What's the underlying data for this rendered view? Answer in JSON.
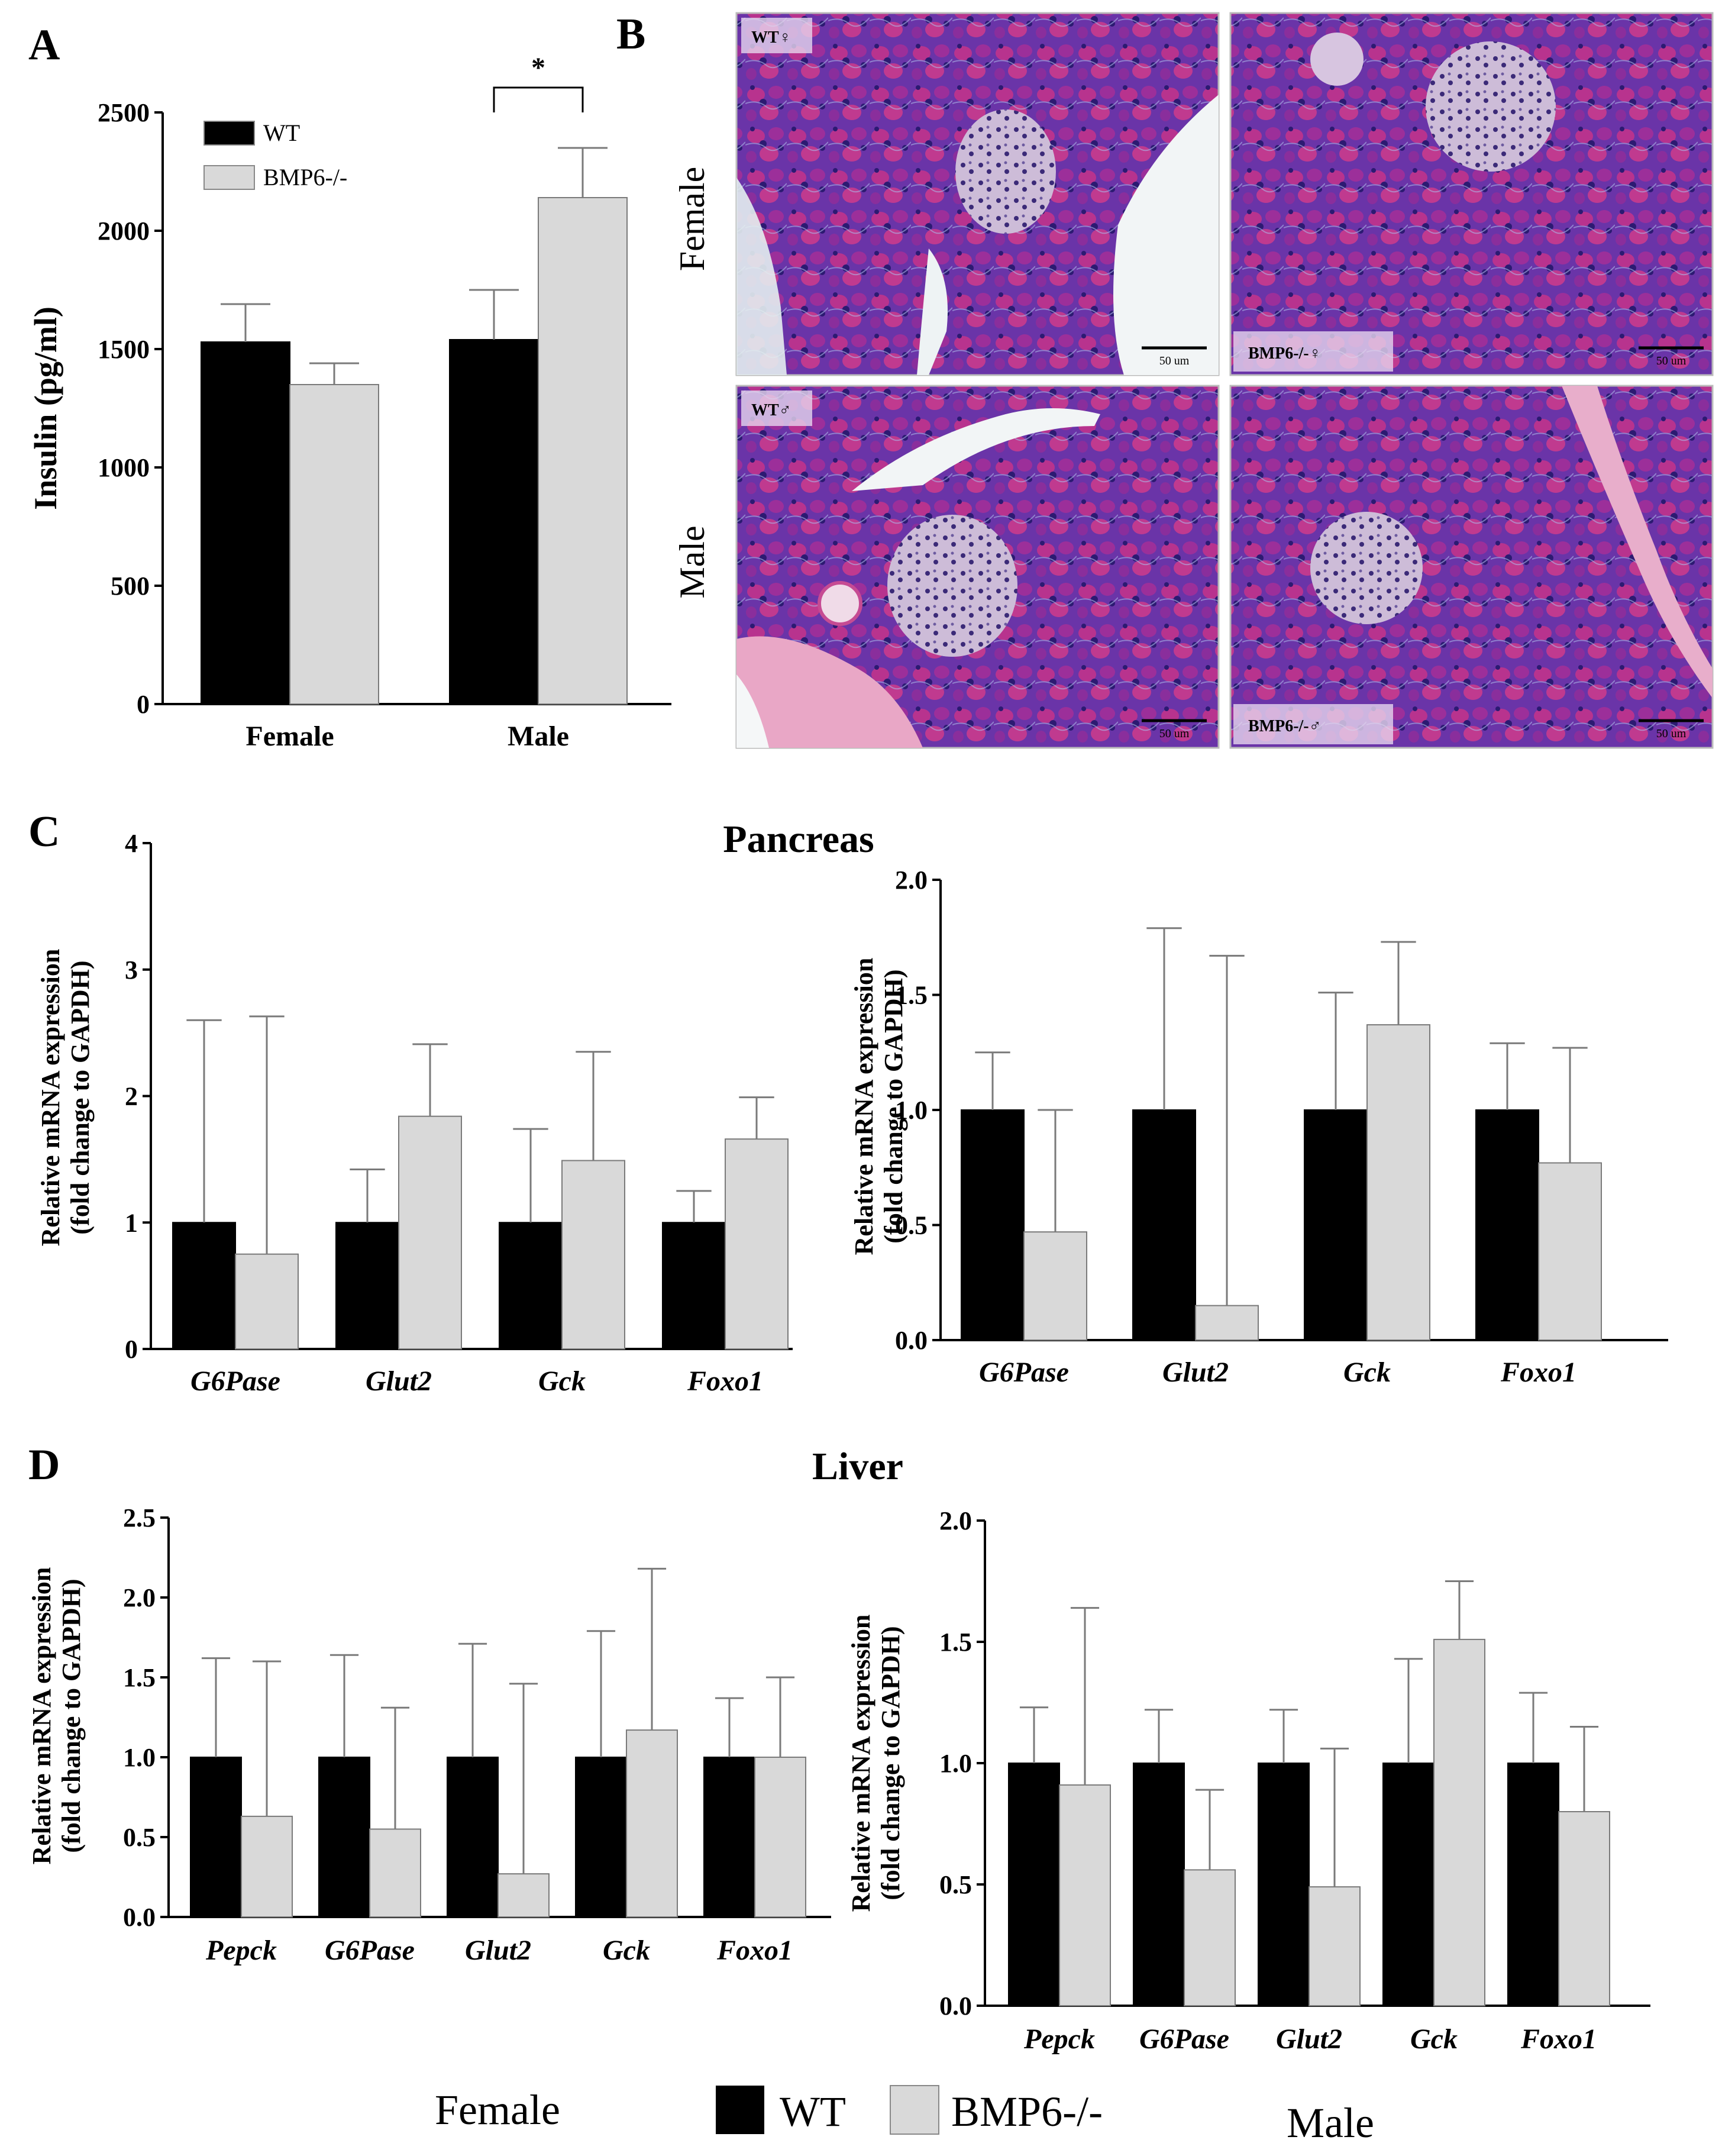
{
  "colors": {
    "wt": "#000000",
    "bmp6": "#d9d9d9",
    "axis": "#000000",
    "histo_bg": "#5a2f9a",
    "histo_cell": "#c2358f",
    "histo_nuc": "#2a1c6e",
    "islet": "#c9b6d6"
  },
  "panels": {
    "a_letter": "A",
    "b_letter": "B",
    "c_letter": "C",
    "d_letter": "D"
  },
  "section_titles": {
    "pancreas": "Pancreas",
    "liver": "Liver"
  },
  "histology": {
    "row_labels": [
      "Female",
      "Male"
    ],
    "tags": [
      "WT♀",
      "BMP6-/-♀",
      "WT♂",
      "BMP6-/-♂"
    ],
    "scale_bar_label": "50 um"
  },
  "bottom_legend": {
    "female": "Female",
    "male": "Male",
    "wt": "WT",
    "bmp6": "BMP6-/-"
  },
  "chart_data": [
    {
      "id": "A",
      "type": "bar",
      "ylabel": "Insulin (pg/ml)",
      "categories": [
        "Female",
        "Male"
      ],
      "ylim": [
        0,
        2500
      ],
      "yticks": [
        0,
        500,
        1000,
        1500,
        2000,
        2500
      ],
      "legend": [
        "WT",
        "BMP6-/-"
      ],
      "legend_position": "top-left",
      "significance": [
        {
          "category": "Male",
          "label": "*"
        }
      ],
      "series": [
        {
          "name": "WT",
          "values": [
            1530,
            1540
          ],
          "errors": [
            160,
            210
          ]
        },
        {
          "name": "BMP6-/-",
          "values": [
            1350,
            2140
          ],
          "errors": [
            90,
            210
          ]
        }
      ]
    },
    {
      "id": "C-female",
      "type": "bar",
      "ylabel": [
        "Relative mRNA expression",
        "(fold change to GAPDH)"
      ],
      "categories": [
        "G6Pase",
        "Glut2",
        "Gck",
        "Foxo1"
      ],
      "ylim": [
        0,
        4
      ],
      "yticks": [
        "0",
        "1",
        "2",
        "3",
        "4"
      ],
      "series": [
        {
          "name": "WT",
          "values": [
            1.0,
            1.0,
            1.0,
            1.0
          ],
          "errors": [
            1.6,
            0.42,
            0.74,
            0.25
          ]
        },
        {
          "name": "BMP6-/-",
          "values": [
            0.75,
            1.84,
            1.49,
            1.66
          ],
          "errors": [
            1.88,
            0.57,
            0.86,
            0.33
          ]
        }
      ]
    },
    {
      "id": "C-male",
      "type": "bar",
      "ylabel": [
        "Relative mRNA expression",
        "(fold change to GAPDH)"
      ],
      "categories": [
        "G6Pase",
        "Glut2",
        "Gck",
        "Foxo1"
      ],
      "ylim": [
        0,
        2
      ],
      "yticks": [
        "0.0",
        "0.5",
        "1.0",
        "1.5",
        "2.0"
      ],
      "series": [
        {
          "name": "WT",
          "values": [
            1.0,
            1.0,
            1.0,
            1.0
          ],
          "errors": [
            0.25,
            0.79,
            0.51,
            0.29
          ]
        },
        {
          "name": "BMP6-/-",
          "values": [
            0.47,
            0.15,
            1.37,
            0.77
          ],
          "errors": [
            0.53,
            1.52,
            0.36,
            0.5
          ]
        }
      ]
    },
    {
      "id": "D-female",
      "type": "bar",
      "ylabel": [
        "Relative mRNA expression",
        "(fold change to GAPDH)"
      ],
      "categories": [
        "Pepck",
        "G6Pase",
        "Glut2",
        "Gck",
        "Foxo1"
      ],
      "ylim": [
        0,
        2.5
      ],
      "yticks": [
        "0.0",
        "0.5",
        "1.0",
        "1.5",
        "2.0",
        "2.5"
      ],
      "series": [
        {
          "name": "WT",
          "values": [
            1.0,
            1.0,
            1.0,
            1.0,
            1.0
          ],
          "errors": [
            0.62,
            0.64,
            0.71,
            0.79,
            0.37
          ]
        },
        {
          "name": "BMP6-/-",
          "values": [
            0.63,
            0.55,
            0.27,
            1.17,
            1.0
          ],
          "errors": [
            0.97,
            0.76,
            1.19,
            1.01,
            0.5
          ]
        }
      ]
    },
    {
      "id": "D-male",
      "type": "bar",
      "ylabel": [
        "Relative mRNA expression",
        "(fold change to GAPDH)"
      ],
      "categories": [
        "Pepck",
        "G6Pase",
        "Glut2",
        "Gck",
        "Foxo1"
      ],
      "ylim": [
        0,
        2
      ],
      "yticks": [
        "0.0",
        "0.5",
        "1.0",
        "1.5",
        "2.0"
      ],
      "series": [
        {
          "name": "WT",
          "values": [
            1.0,
            1.0,
            1.0,
            1.0,
            1.0
          ],
          "errors": [
            0.23,
            0.22,
            0.22,
            0.43,
            0.29
          ]
        },
        {
          "name": "BMP6-/-",
          "values": [
            0.91,
            0.56,
            0.49,
            1.51,
            0.8
          ],
          "errors": [
            0.73,
            0.33,
            0.57,
            0.24,
            0.35
          ]
        }
      ]
    }
  ]
}
